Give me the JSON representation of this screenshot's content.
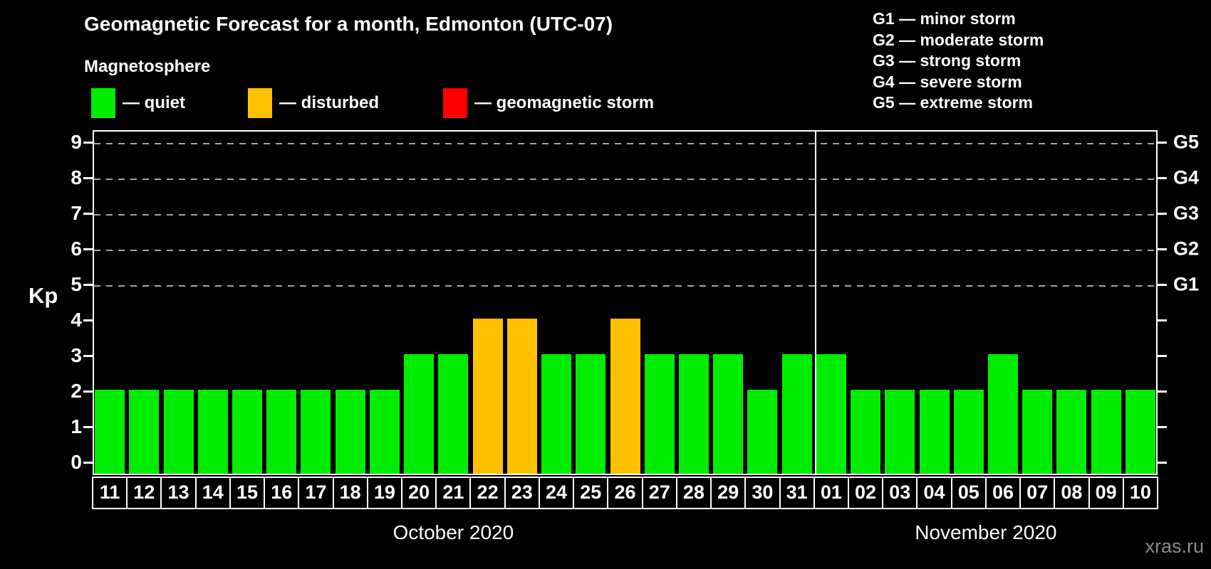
{
  "title": "Geomagnetic Forecast for a month, Edmonton (UTC-07)",
  "subtitle": "Magnetosphere",
  "watermark": "xras.ru",
  "colors": {
    "quiet": "#00ED00",
    "disturbed": "#FFC100",
    "storm": "#FF0000",
    "grid": "#A6A6A6",
    "axis": "#FFFFFF",
    "watermark_gray": "#8C8C8C"
  },
  "legend": {
    "items": [
      {
        "name": "quiet",
        "label": "— quiet"
      },
      {
        "name": "disturbed",
        "label": "— disturbed"
      },
      {
        "name": "storm",
        "label": "— geomagnetic storm"
      }
    ]
  },
  "g_scale_legend": [
    "G1 — minor storm",
    "G2 — moderate storm",
    "G3 — strong storm",
    "G4 — severe storm",
    "G5 — extreme storm"
  ],
  "y_axis": {
    "label": "Kp",
    "ticks": [
      0,
      1,
      2,
      3,
      4,
      5,
      6,
      7,
      8,
      9
    ]
  },
  "right_axis": {
    "labels": [
      {
        "kp": 5,
        "label": "G1"
      },
      {
        "kp": 6,
        "label": "G2"
      },
      {
        "kp": 7,
        "label": "G3"
      },
      {
        "kp": 8,
        "label": "G4"
      },
      {
        "kp": 9,
        "label": "G5"
      }
    ]
  },
  "chart_data": {
    "type": "bar",
    "title": "Geomagnetic Forecast for a month, Edmonton (UTC-07)",
    "xlabel": "",
    "ylabel": "Kp",
    "ylim": [
      0,
      9
    ],
    "grid": "horizontal dashed lines at Kp 5-9 (G1-G5 thresholds)",
    "grid_levels": [
      5,
      6,
      7,
      8,
      9
    ],
    "legend_position": "top-left",
    "categories": [
      "11",
      "12",
      "13",
      "14",
      "15",
      "16",
      "17",
      "18",
      "19",
      "20",
      "21",
      "22",
      "23",
      "24",
      "25",
      "26",
      "27",
      "28",
      "29",
      "30",
      "31",
      "01",
      "02",
      "03",
      "04",
      "05",
      "06",
      "07",
      "08",
      "09",
      "10"
    ],
    "values": [
      2,
      2,
      2,
      2,
      2,
      2,
      2,
      2,
      2,
      3,
      3,
      4,
      4,
      3,
      3,
      4,
      3,
      3,
      3,
      2,
      3,
      3,
      2,
      2,
      2,
      2,
      3,
      2,
      2,
      2,
      2
    ],
    "statuses": [
      "quiet",
      "quiet",
      "quiet",
      "quiet",
      "quiet",
      "quiet",
      "quiet",
      "quiet",
      "quiet",
      "quiet",
      "quiet",
      "disturbed",
      "disturbed",
      "quiet",
      "quiet",
      "disturbed",
      "quiet",
      "quiet",
      "quiet",
      "quiet",
      "quiet",
      "quiet",
      "quiet",
      "quiet",
      "quiet",
      "quiet",
      "quiet",
      "quiet",
      "quiet",
      "quiet",
      "quiet"
    ],
    "month_groups": [
      {
        "label": "October 2020",
        "start": 0,
        "count": 21
      },
      {
        "label": "November 2020",
        "start": 21,
        "count": 10
      }
    ]
  }
}
